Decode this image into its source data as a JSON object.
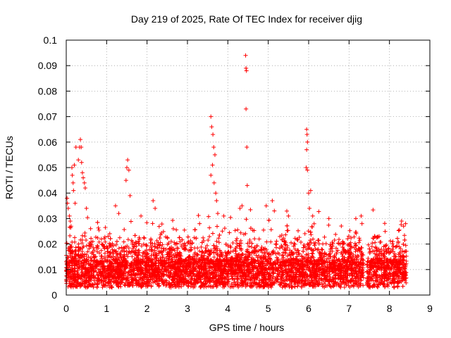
{
  "chart_data": {
    "type": "scatter",
    "title": "Day 219 of 2025, Rate Of TEC Index for receiver djig",
    "xlabel": "GPS time / hours",
    "ylabel": "ROTI / TECUs",
    "xlim": [
      0,
      9
    ],
    "ylim": [
      0,
      0.1
    ],
    "x_ticks": [
      "0",
      "1",
      "2",
      "3",
      "4",
      "5",
      "6",
      "7",
      "8",
      "9"
    ],
    "y_ticks": [
      "0",
      "0.01",
      "0.02",
      "0.03",
      "0.04",
      "0.05",
      "0.06",
      "0.07",
      "0.08",
      "0.09",
      "0.1"
    ],
    "grid": true,
    "marker": "+",
    "color": "#ff0000",
    "data_end_hour": 8.42,
    "gap": [
      7.36,
      7.44
    ],
    "series": [
      {
        "name": "ROTI",
        "points": [
          [
            0.02,
            0.038
          ],
          [
            0.03,
            0.036
          ],
          [
            0.05,
            0.034
          ],
          [
            0.08,
            0.031
          ],
          [
            0.1,
            0.029
          ],
          [
            0.12,
            0.027
          ],
          [
            0.14,
            0.05
          ],
          [
            0.15,
            0.047
          ],
          [
            0.17,
            0.044
          ],
          [
            0.18,
            0.041
          ],
          [
            0.2,
            0.051
          ],
          [
            0.22,
            0.036
          ],
          [
            0.24,
            0.058
          ],
          [
            0.3,
            0.053
          ],
          [
            0.33,
            0.058
          ],
          [
            0.35,
            0.061
          ],
          [
            0.37,
            0.058
          ],
          [
            0.38,
            0.052
          ],
          [
            0.4,
            0.048
          ],
          [
            0.42,
            0.046
          ],
          [
            0.45,
            0.044
          ],
          [
            0.47,
            0.042
          ],
          [
            0.5,
            0.034
          ],
          [
            1.22,
            0.035
          ],
          [
            1.3,
            0.032
          ],
          [
            1.48,
            0.045
          ],
          [
            1.5,
            0.05
          ],
          [
            1.52,
            0.053
          ],
          [
            1.55,
            0.049
          ],
          [
            1.58,
            0.039
          ],
          [
            1.85,
            0.031
          ],
          [
            2.15,
            0.037
          ],
          [
            2.2,
            0.034
          ],
          [
            2.65,
            0.026
          ],
          [
            3.3,
            0.028
          ],
          [
            3.58,
            0.07
          ],
          [
            3.6,
            0.066
          ],
          [
            3.63,
            0.063
          ],
          [
            3.65,
            0.058
          ],
          [
            3.68,
            0.055
          ],
          [
            3.62,
            0.051
          ],
          [
            3.58,
            0.047
          ],
          [
            3.66,
            0.044
          ],
          [
            3.7,
            0.04
          ],
          [
            3.72,
            0.037
          ],
          [
            3.75,
            0.032
          ],
          [
            3.9,
            0.031
          ],
          [
            4.3,
            0.034
          ],
          [
            4.35,
            0.035
          ],
          [
            4.44,
            0.094
          ],
          [
            4.45,
            0.089
          ],
          [
            4.46,
            0.088
          ],
          [
            4.45,
            0.073
          ],
          [
            4.47,
            0.058
          ],
          [
            4.48,
            0.043
          ],
          [
            4.95,
            0.035
          ],
          [
            5.1,
            0.037
          ],
          [
            5.15,
            0.033
          ],
          [
            5.5,
            0.031
          ],
          [
            5.95,
            0.065
          ],
          [
            5.96,
            0.063
          ],
          [
            5.97,
            0.06
          ],
          [
            5.95,
            0.057
          ],
          [
            5.94,
            0.05
          ],
          [
            5.97,
            0.049
          ],
          [
            6.0,
            0.04
          ],
          [
            6.05,
            0.041
          ],
          [
            6.02,
            0.034
          ],
          [
            6.1,
            0.031
          ],
          [
            6.5,
            0.03
          ],
          [
            7.3,
            0.031
          ],
          [
            7.32,
            0.028
          ],
          [
            8.3,
            0.029
          ],
          [
            8.35,
            0.027
          ],
          [
            8.4,
            0.028
          ]
        ]
      }
    ]
  }
}
